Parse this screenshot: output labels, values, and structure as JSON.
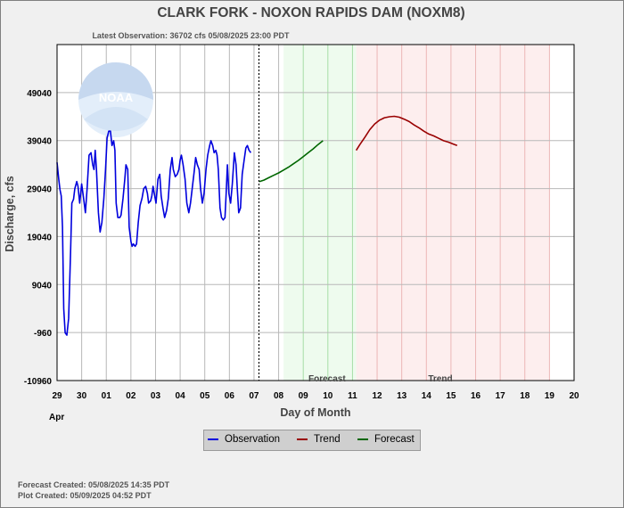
{
  "chart_data": {
    "type": "line",
    "title": "CLARK FORK - NOXON RAPIDS DAM  (NOXM8)",
    "subtitle": "Latest Observation: 36702 cfs 05/08/2025 23:00 PDT",
    "xlabel": "Day of Month",
    "ylabel": "Discharge, cfs",
    "x_tick_labels": [
      "29",
      "30",
      "01",
      "02",
      "03",
      "04",
      "05",
      "06",
      "07",
      "08",
      "09",
      "10",
      "11",
      "12",
      "13",
      "14",
      "15",
      "16",
      "17",
      "18",
      "19",
      "20"
    ],
    "month_label": "Apr",
    "y_tick_values": [
      -10960,
      -960,
      9040,
      19040,
      29040,
      39040,
      49040
    ],
    "ylim": [
      -10960,
      59040
    ],
    "region_labels": {
      "forecast": "Forecast",
      "trend": "Trend"
    },
    "regions": {
      "forecast_start": 10.2,
      "forecast_end": 13.15,
      "trend_end": 21
    },
    "grid": true,
    "legend_placement": "bottom-center",
    "colors": {
      "observation": "#0000dd",
      "trend": "#990000",
      "forecast": "#006600",
      "forecast_fill": "#eefbee",
      "trend_fill": "#fdeeee",
      "grid": "#b8b8b8",
      "plot_bg": "#ffffff"
    },
    "series": [
      {
        "name": "Observation",
        "points": [
          [
            1.0,
            34500
          ],
          [
            1.07,
            31000
          ],
          [
            1.12,
            28800
          ],
          [
            1.17,
            27500
          ],
          [
            1.22,
            21000
          ],
          [
            1.27,
            4000
          ],
          [
            1.33,
            -1000
          ],
          [
            1.4,
            -1500
          ],
          [
            1.47,
            2000
          ],
          [
            1.55,
            16000
          ],
          [
            1.6,
            26000
          ],
          [
            1.67,
            26800
          ],
          [
            1.72,
            29000
          ],
          [
            1.8,
            30500
          ],
          [
            1.85,
            29500
          ],
          [
            1.92,
            26000
          ],
          [
            2.0,
            30000
          ],
          [
            2.08,
            27000
          ],
          [
            2.15,
            24000
          ],
          [
            2.22,
            29000
          ],
          [
            2.3,
            36000
          ],
          [
            2.38,
            36500
          ],
          [
            2.45,
            34000
          ],
          [
            2.5,
            33000
          ],
          [
            2.55,
            37000
          ],
          [
            2.6,
            33000
          ],
          [
            2.68,
            24000
          ],
          [
            2.75,
            20000
          ],
          [
            2.82,
            22000
          ],
          [
            2.9,
            27000
          ],
          [
            2.97,
            33000
          ],
          [
            3.03,
            39500
          ],
          [
            3.1,
            41000
          ],
          [
            3.17,
            41000
          ],
          [
            3.23,
            38000
          ],
          [
            3.3,
            39000
          ],
          [
            3.35,
            37000
          ],
          [
            3.4,
            26000
          ],
          [
            3.47,
            23000
          ],
          [
            3.55,
            23000
          ],
          [
            3.6,
            23500
          ],
          [
            3.68,
            27000
          ],
          [
            3.75,
            31000
          ],
          [
            3.8,
            34000
          ],
          [
            3.87,
            33000
          ],
          [
            3.93,
            21000
          ],
          [
            4.0,
            18000
          ],
          [
            4.05,
            17000
          ],
          [
            4.1,
            17500
          ],
          [
            4.17,
            17000
          ],
          [
            4.23,
            17500
          ],
          [
            4.3,
            22000
          ],
          [
            4.37,
            25500
          ],
          [
            4.45,
            27000
          ],
          [
            4.52,
            29000
          ],
          [
            4.6,
            29500
          ],
          [
            4.67,
            28000
          ],
          [
            4.72,
            26000
          ],
          [
            4.8,
            26500
          ],
          [
            4.85,
            27500
          ],
          [
            4.9,
            29500
          ],
          [
            4.95,
            28000
          ],
          [
            5.02,
            26000
          ],
          [
            5.1,
            31000
          ],
          [
            5.17,
            32000
          ],
          [
            5.23,
            27500
          ],
          [
            5.3,
            25000
          ],
          [
            5.37,
            23000
          ],
          [
            5.45,
            24500
          ],
          [
            5.52,
            27000
          ],
          [
            5.6,
            33000
          ],
          [
            5.67,
            35500
          ],
          [
            5.72,
            33000
          ],
          [
            5.8,
            31500
          ],
          [
            5.88,
            32000
          ],
          [
            5.95,
            33000
          ],
          [
            6.0,
            35000
          ],
          [
            6.05,
            36000
          ],
          [
            6.12,
            34000
          ],
          [
            6.2,
            31000
          ],
          [
            6.27,
            26000
          ],
          [
            6.35,
            24000
          ],
          [
            6.42,
            26000
          ],
          [
            6.5,
            29500
          ],
          [
            6.57,
            32500
          ],
          [
            6.63,
            35500
          ],
          [
            6.7,
            34000
          ],
          [
            6.77,
            33000
          ],
          [
            6.83,
            29000
          ],
          [
            6.9,
            26000
          ],
          [
            6.97,
            28000
          ],
          [
            7.05,
            33000
          ],
          [
            7.12,
            36000
          ],
          [
            7.2,
            38000
          ],
          [
            7.25,
            39000
          ],
          [
            7.32,
            38000
          ],
          [
            7.38,
            36500
          ],
          [
            7.45,
            37000
          ],
          [
            7.5,
            36000
          ],
          [
            7.55,
            33000
          ],
          [
            7.62,
            25000
          ],
          [
            7.68,
            23000
          ],
          [
            7.75,
            22500
          ],
          [
            7.82,
            23000
          ],
          [
            7.87,
            28000
          ],
          [
            7.92,
            34000
          ],
          [
            7.98,
            28000
          ],
          [
            8.05,
            26000
          ],
          [
            8.12,
            30000
          ],
          [
            8.2,
            36500
          ],
          [
            8.27,
            34000
          ],
          [
            8.32,
            29000
          ],
          [
            8.38,
            24000
          ],
          [
            8.45,
            25000
          ],
          [
            8.52,
            32000
          ],
          [
            8.6,
            35000
          ],
          [
            8.67,
            37500
          ],
          [
            8.73,
            38000
          ],
          [
            8.8,
            37000
          ],
          [
            8.87,
            36500
          ]
        ]
      },
      {
        "name": "Trend",
        "points": [
          [
            13.15,
            37000
          ],
          [
            13.3,
            38200
          ],
          [
            13.5,
            39700
          ],
          [
            13.7,
            41300
          ],
          [
            13.9,
            42500
          ],
          [
            14.1,
            43300
          ],
          [
            14.3,
            43800
          ],
          [
            14.5,
            44000
          ],
          [
            14.7,
            44100
          ],
          [
            14.9,
            43900
          ],
          [
            15.1,
            43500
          ],
          [
            15.3,
            43000
          ],
          [
            15.5,
            42300
          ],
          [
            15.7,
            41700
          ],
          [
            15.9,
            41000
          ],
          [
            16.1,
            40400
          ],
          [
            16.3,
            40000
          ],
          [
            16.5,
            39500
          ],
          [
            16.7,
            39000
          ],
          [
            16.9,
            38700
          ],
          [
            17.1,
            38300
          ],
          [
            17.25,
            38000
          ]
        ]
      },
      {
        "name": "Forecast",
        "points": [
          [
            9.22,
            30500
          ],
          [
            9.4,
            30800
          ],
          [
            9.6,
            31300
          ],
          [
            9.8,
            31800
          ],
          [
            10.0,
            32300
          ],
          [
            10.2,
            32900
          ],
          [
            10.4,
            33500
          ],
          [
            10.6,
            34200
          ],
          [
            10.8,
            34900
          ],
          [
            11.0,
            35700
          ],
          [
            11.2,
            36500
          ],
          [
            11.4,
            37300
          ],
          [
            11.6,
            38200
          ],
          [
            11.8,
            39000
          ]
        ]
      }
    ]
  },
  "footer": {
    "forecast_created": "Forecast Created: 05/08/2025 14:35 PDT",
    "plot_created": "Plot Created: 05/09/2025 04:52 PDT"
  },
  "logo": {
    "text": "NOAA"
  }
}
